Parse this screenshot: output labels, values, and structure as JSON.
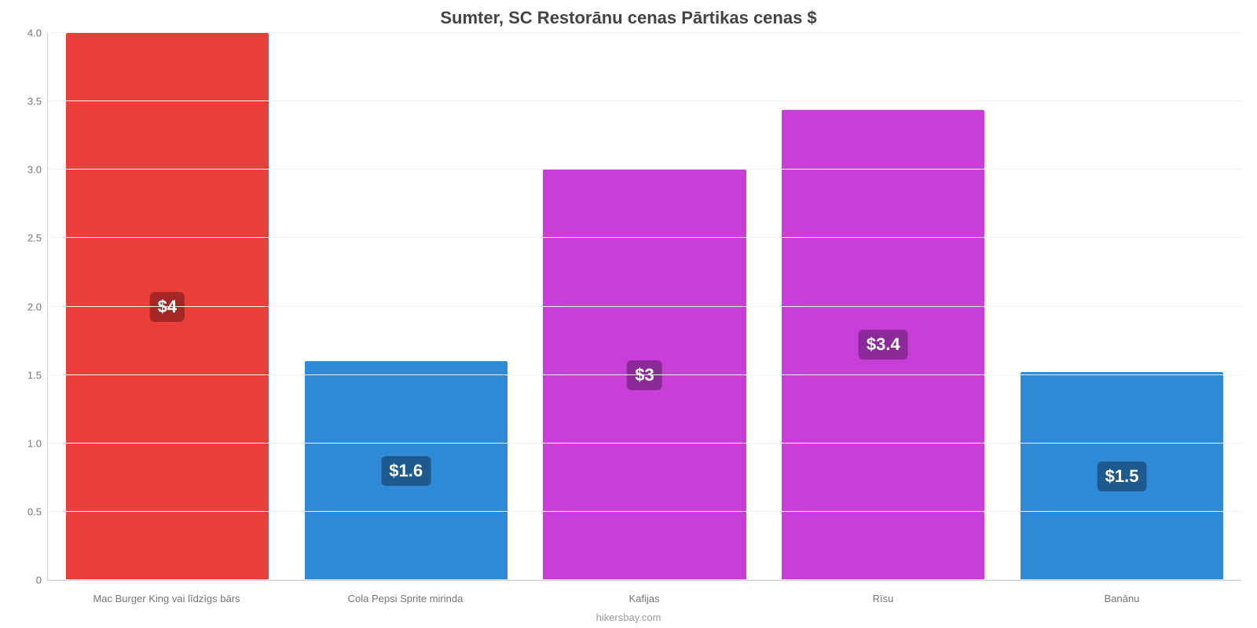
{
  "chart": {
    "type": "bar",
    "title": "Sumter, SC Restorānu cenas Pārtikas cenas $",
    "title_fontsize": 22,
    "title_color": "#444444",
    "ylim": [
      0,
      4.0
    ],
    "yticks": [
      {
        "v": 0,
        "label": "0"
      },
      {
        "v": 0.5,
        "label": "0.5"
      },
      {
        "v": 1.0,
        "label": "1.0"
      },
      {
        "v": 1.5,
        "label": "1.5"
      },
      {
        "v": 2.0,
        "label": "2.0"
      },
      {
        "v": 2.5,
        "label": "2.5"
      },
      {
        "v": 3.0,
        "label": "3.0"
      },
      {
        "v": 3.5,
        "label": "3.5"
      },
      {
        "v": 4.0,
        "label": "4.0"
      }
    ],
    "grid_color": "#f2f2f2",
    "axis_line_color": "#d0d0d0",
    "tick_label_color": "#767676",
    "tick_label_fontsize": 13,
    "background_color": "#ffffff",
    "bar_width_pct": 85,
    "value_badge_fontsize": 22,
    "bars": [
      {
        "category": "Mac Burger King vai līdzīgs bārs",
        "value": 4.0,
        "display": "$4",
        "bar_color": "#e93e3a",
        "badge_color": "#a52725"
      },
      {
        "category": "Cola Pepsi Sprite mirinda",
        "value": 1.6,
        "display": "$1.6",
        "bar_color": "#2f8ad8",
        "badge_color": "#1e5a8e"
      },
      {
        "category": "Kafijas",
        "value": 3.0,
        "display": "$3",
        "bar_color": "#c93ed8",
        "badge_color": "#8d2a99"
      },
      {
        "category": "Rīsu",
        "value": 3.44,
        "display": "$3.4",
        "bar_color": "#c93ed8",
        "badge_color": "#8d2a99"
      },
      {
        "category": "Banānu",
        "value": 1.52,
        "display": "$1.5",
        "bar_color": "#2f8ad8",
        "badge_color": "#1e5a8e"
      }
    ],
    "credit": "hikersbay.com"
  }
}
